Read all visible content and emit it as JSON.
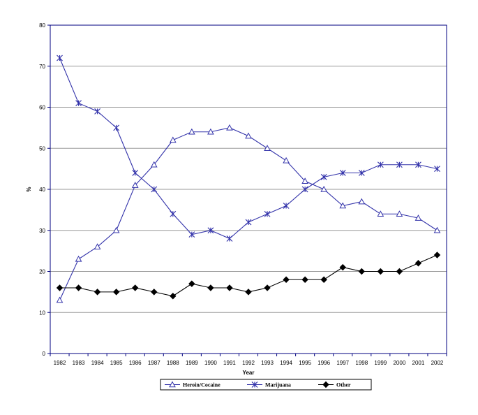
{
  "chart_data": {
    "type": "line",
    "title": "",
    "xlabel": "Year",
    "ylabel": "%",
    "ylim": [
      0,
      80
    ],
    "yticks": [
      0,
      10,
      20,
      30,
      40,
      50,
      60,
      70,
      80
    ],
    "grid": "horizontal",
    "legend_position": "bottom",
    "x": [
      "1982",
      "1983",
      "1984",
      "1985",
      "1986",
      "1987",
      "1988",
      "1989",
      "1990",
      "1991",
      "1992",
      "1993",
      "1994",
      "1995",
      "1996",
      "1997",
      "1998",
      "1999",
      "2000",
      "2001",
      "2002"
    ],
    "series": [
      {
        "name": "Heroin/Cocaine",
        "marker": "triangle-open",
        "color": "#3333aa",
        "values": [
          13,
          23,
          26,
          30,
          41,
          46,
          52,
          54,
          54,
          55,
          53,
          50,
          47,
          42,
          40,
          36,
          37,
          34,
          34,
          33,
          30
        ]
      },
      {
        "name": "Marijuana",
        "marker": "asterisk",
        "color": "#3333aa",
        "values": [
          72,
          61,
          59,
          55,
          44,
          40,
          34,
          29,
          30,
          28,
          32,
          34,
          36,
          40,
          43,
          44,
          44,
          46,
          46,
          46,
          45
        ]
      },
      {
        "name": "Other",
        "marker": "diamond-filled",
        "color": "#000000",
        "values": [
          16,
          16,
          15,
          15,
          16,
          15,
          14,
          17,
          16,
          16,
          15,
          16,
          18,
          18,
          18,
          21,
          20,
          20,
          20,
          22,
          24
        ]
      }
    ]
  }
}
